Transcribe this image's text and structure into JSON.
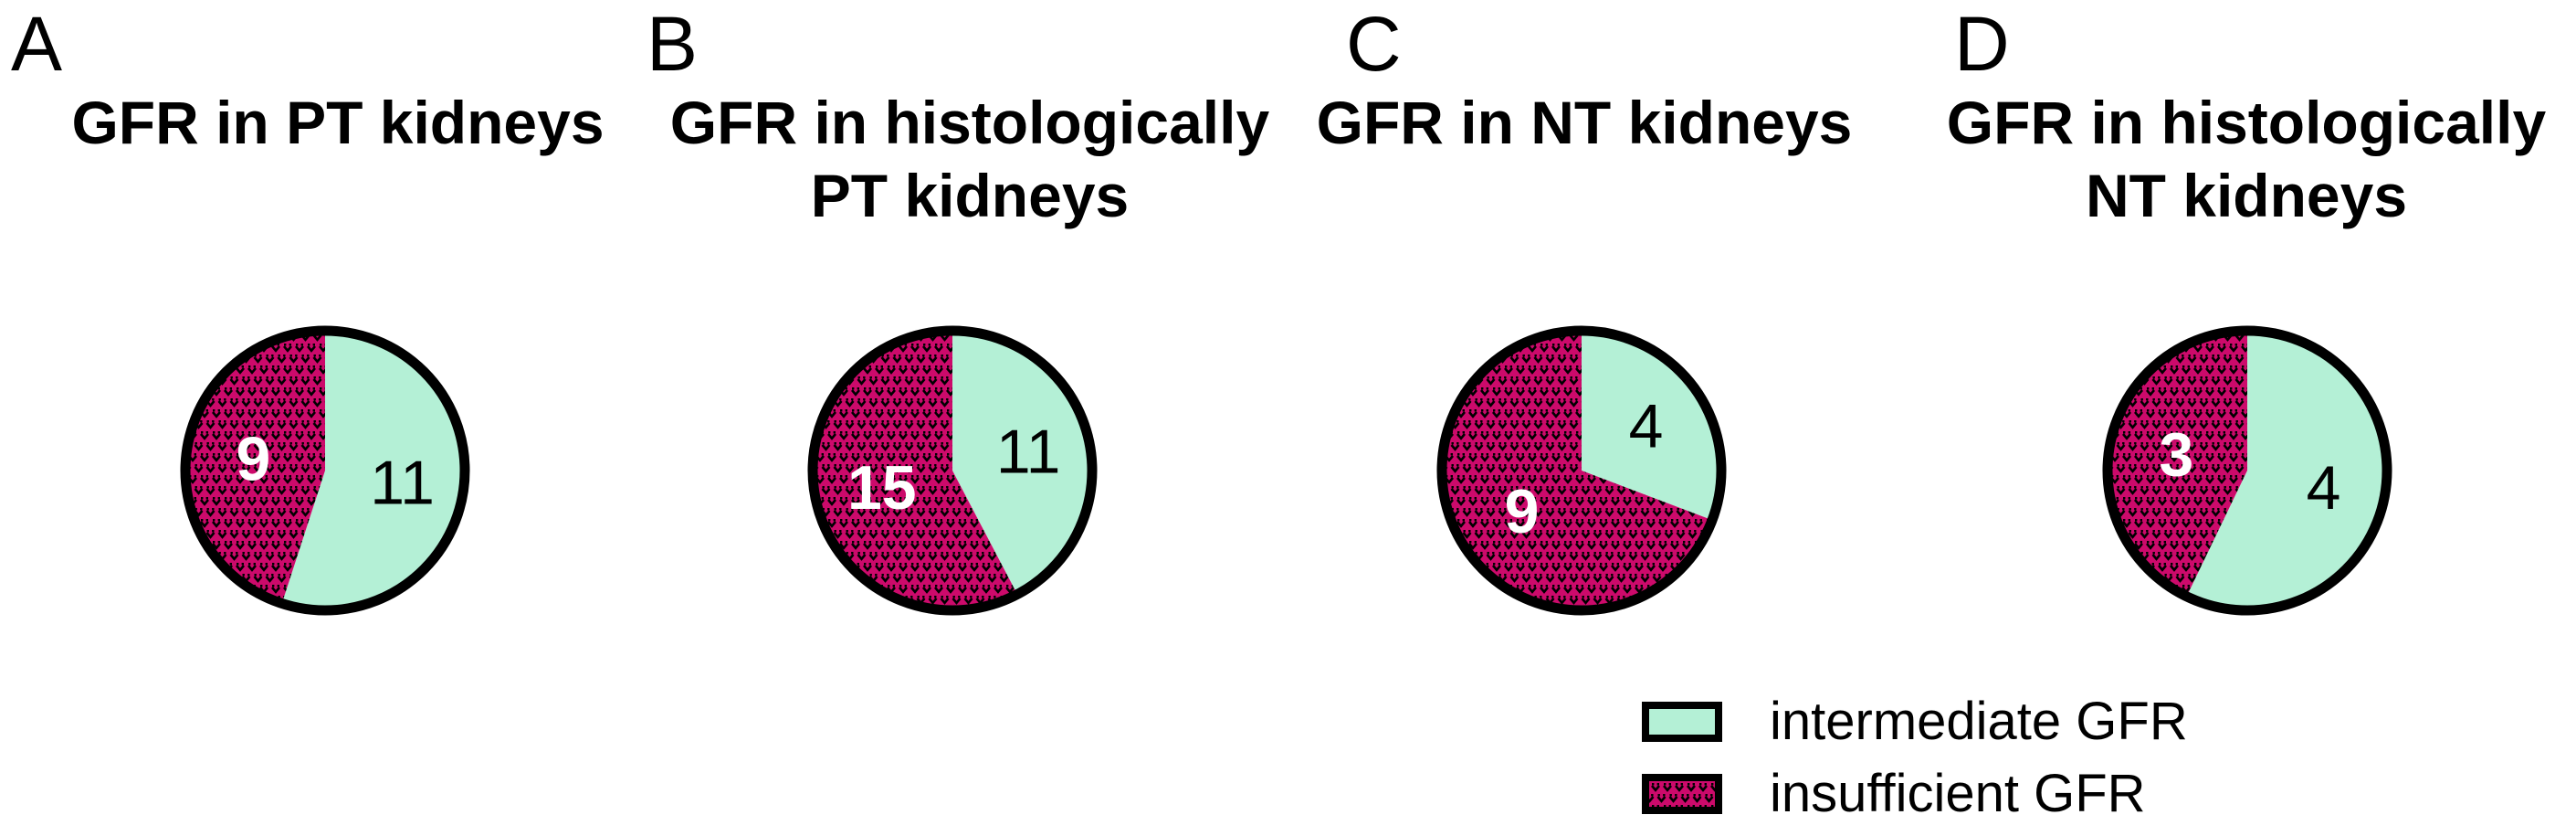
{
  "figure": {
    "background": "#ffffff",
    "panels": [
      {
        "letter": "A"
      },
      {
        "letter": "B"
      },
      {
        "letter": "C"
      },
      {
        "letter": "D"
      }
    ],
    "legend": {
      "items": [
        {
          "label": "intermediate GFR",
          "swatch": "solid mint rectangle with black border"
        },
        {
          "label": "insufficient GFR",
          "swatch": "magenta rectangle with black v-dot pattern and black border"
        }
      ]
    },
    "colors": {
      "intermediate": "#B4F0D6",
      "insufficient": "#CC0A6B",
      "outline": "#000000",
      "background": "#ffffff"
    }
  },
  "chart_data": [
    {
      "type": "pie",
      "title": "GFR in PT kidneys",
      "labels": [
        "intermediate GFR",
        "insufficient GFR"
      ],
      "values": [
        11,
        9
      ],
      "colors": [
        "#B4F0D6",
        "#CC0A6B"
      ],
      "value_label_colors": [
        "#000000",
        "#ffffff"
      ],
      "start_angle": "12 o'clock",
      "direction": "clockwise",
      "pattern_note": "insufficient slice filled with black v-dot hatch on magenta"
    },
    {
      "type": "pie",
      "title": "GFR in histologically PT kidneys",
      "labels": [
        "intermediate GFR",
        "insufficient GFR"
      ],
      "values": [
        11,
        15
      ],
      "colors": [
        "#B4F0D6",
        "#CC0A6B"
      ],
      "value_label_colors": [
        "#000000",
        "#ffffff"
      ],
      "start_angle": "12 o'clock",
      "direction": "clockwise",
      "pattern_note": "insufficient slice filled with black v-dot hatch on magenta"
    },
    {
      "type": "pie",
      "title": "GFR in NT kidneys",
      "labels": [
        "intermediate GFR",
        "insufficient GFR"
      ],
      "values": [
        4,
        9
      ],
      "colors": [
        "#B4F0D6",
        "#CC0A6B"
      ],
      "value_label_colors": [
        "#000000",
        "#ffffff"
      ],
      "start_angle": "12 o'clock",
      "direction": "clockwise",
      "pattern_note": "insufficient slice filled with black v-dot hatch on magenta"
    },
    {
      "type": "pie",
      "title": "GFR in histologically NT kidneys",
      "labels": [
        "intermediate GFR",
        "insufficient GFR"
      ],
      "values": [
        4,
        3
      ],
      "colors": [
        "#B4F0D6",
        "#CC0A6B"
      ],
      "value_label_colors": [
        "#000000",
        "#ffffff"
      ],
      "start_angle": "12 o'clock",
      "direction": "clockwise",
      "pattern_note": "insufficient slice filled with black v-dot hatch on magenta"
    }
  ]
}
